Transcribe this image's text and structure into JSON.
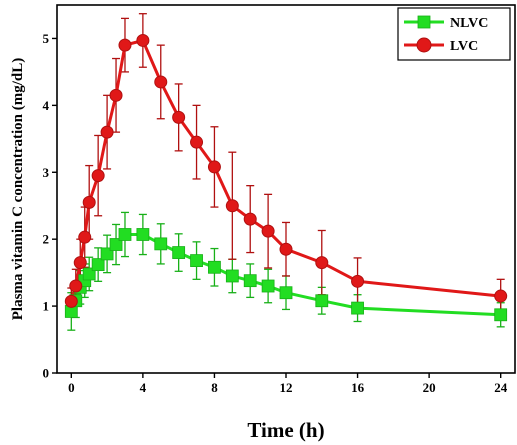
{
  "chart_data": {
    "type": "line",
    "title": "",
    "xlabel": "Time (h)",
    "ylabel": "Plasma vitamin C concentration (mg/dL)",
    "xlim": [
      -0.8,
      24.8
    ],
    "ylim": [
      0,
      5.5
    ],
    "xticks": [
      0,
      4,
      8,
      12,
      16,
      20,
      24
    ],
    "yticks": [
      0,
      1,
      2,
      3,
      4,
      5
    ],
    "grid": false,
    "legend_position": "top-right",
    "series": [
      {
        "name": "NLVC",
        "color": "#22dd22",
        "marker": "square",
        "x": [
          0,
          0.25,
          0.5,
          0.75,
          1,
          1.5,
          2,
          2.5,
          3,
          4,
          5,
          6,
          7,
          8,
          9,
          10,
          11,
          12,
          14,
          16,
          24
        ],
        "y": [
          0.92,
          1.08,
          1.28,
          1.38,
          1.48,
          1.62,
          1.78,
          1.92,
          2.07,
          2.07,
          1.93,
          1.8,
          1.68,
          1.58,
          1.45,
          1.38,
          1.3,
          1.2,
          1.08,
          0.97,
          0.87
        ],
        "err": [
          0.28,
          0.25,
          0.25,
          0.25,
          0.25,
          0.25,
          0.28,
          0.3,
          0.33,
          0.3,
          0.3,
          0.28,
          0.28,
          0.28,
          0.25,
          0.25,
          0.25,
          0.25,
          0.2,
          0.2,
          0.18
        ]
      },
      {
        "name": "LVC",
        "color": "#e01818",
        "marker": "circle",
        "x": [
          0,
          0.25,
          0.5,
          0.75,
          1,
          1.5,
          2,
          2.5,
          3,
          4,
          5,
          6,
          7,
          8,
          9,
          10,
          11,
          12,
          14,
          16,
          24
        ],
        "y": [
          1.07,
          1.3,
          1.65,
          2.03,
          2.55,
          2.95,
          3.6,
          4.15,
          4.9,
          4.97,
          4.35,
          3.82,
          3.45,
          3.08,
          2.5,
          2.3,
          2.12,
          1.85,
          1.65,
          1.37,
          1.15
        ],
        "err": [
          0.2,
          0.25,
          0.35,
          0.45,
          0.55,
          0.6,
          0.55,
          0.55,
          0.4,
          0.4,
          0.55,
          0.5,
          0.55,
          0.6,
          0.8,
          0.5,
          0.55,
          0.4,
          0.48,
          0.35,
          0.25
        ]
      }
    ]
  }
}
